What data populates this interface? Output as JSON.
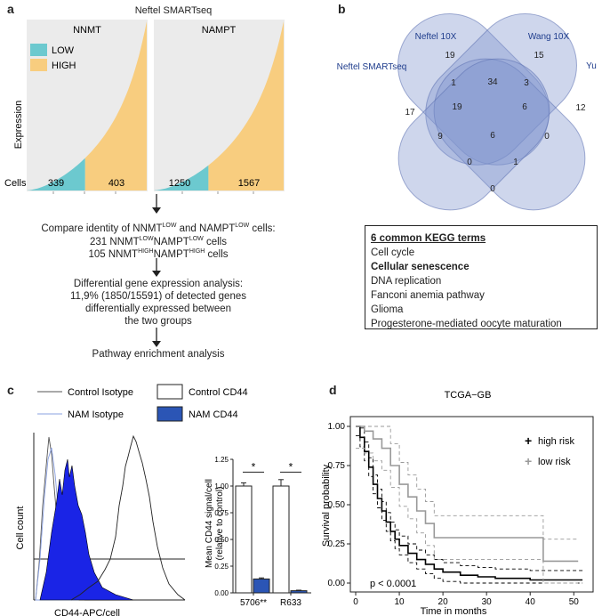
{
  "panel_a": {
    "label": "a",
    "title": "Neftel SMARTseq",
    "left_title": "NNMT",
    "right_title": "NAMPT",
    "legend_low": "LOW",
    "legend_high": "HIGH",
    "ylabel": "Expression",
    "cells_label": "Cells",
    "counts": [
      "339",
      "403",
      "1250",
      "1567"
    ],
    "colors": {
      "low": "#6cc9cf",
      "high": "#f8cd7f",
      "bg": "#ebebeb"
    },
    "flow": {
      "step1_prefix": "Compare identity of  NNMT",
      "step1_sup1": "LOW",
      "step1_mid": " and NAMPT",
      "step1_sup2": "LOW",
      "step1_suffix": " cells:",
      "line2_num": "231 NNMT",
      "line2_sup1": "LOW",
      "line2_mid": "NAMPT",
      "line2_sup2": "LOW",
      "line2_suffix": " cells",
      "line3_num": "105 NNMT",
      "line3_sup1": "HIGH",
      "line3_mid": "NAMPT",
      "line3_sup2": "HIGH",
      "line3_suffix": " cells",
      "step2": [
        "Differential gene expression analysis:",
        "11,9% (1850/15591) of detected genes",
        "differentially expressed between",
        "the two groups"
      ],
      "step3": "Pathway enrichment analysis"
    }
  },
  "panel_b": {
    "label": "b",
    "sets": [
      "Neftel 10X",
      "Wang 10X",
      "Neftel SMARTseq",
      "Yu"
    ],
    "counts": [
      "19",
      "15",
      "17",
      "12",
      "1",
      "34",
      "3",
      "19",
      "6",
      "9",
      "0",
      "6",
      "0",
      "1",
      "0"
    ],
    "set_color": "#1e3c8c",
    "fill_color": "#7e93cc",
    "kegg_title": "6 common KEGG terms",
    "kegg_terms": [
      "Cell cycle",
      "Cellular senescence",
      "DNA replication",
      "Fanconi anemia pathway",
      "Glioma",
      "Progesterone-mediated oocyte maturation"
    ]
  },
  "panel_c": {
    "label": "c",
    "legend": [
      "Control Isotype",
      "Control CD44",
      "NAM Isotype",
      "NAM CD44"
    ],
    "hist_ylabel": "Cell count",
    "hist_xlabel": "CD44-APC/cell",
    "bar_ylabel_1": "Mean CD44 signal/cell",
    "bar_ylabel_2": "(relative to control)",
    "colors": {
      "nam_fill": "#2b55b5",
      "histo_blue": "#1a24e6"
    },
    "chart_data": {
      "type": "bar",
      "categories": [
        "5706**",
        "R633"
      ],
      "series": [
        {
          "name": "Control CD44",
          "values": [
            1.0,
            1.0
          ],
          "errors": [
            0.03,
            0.06
          ]
        },
        {
          "name": "NAM CD44",
          "values": [
            0.13,
            0.02
          ],
          "errors": [
            0.01,
            0.005
          ]
        }
      ],
      "yticks": [
        "0.00",
        "0.25",
        "0.50",
        "0.75",
        "1.00",
        "1.25"
      ],
      "ylim": [
        0,
        1.25
      ],
      "significance": [
        "*",
        "*"
      ]
    }
  },
  "panel_d": {
    "label": "d",
    "title": "TCGA−GB",
    "ylabel": "Survival probability",
    "xlabel": "Time in months",
    "legend_high_symbol": "+",
    "legend_high": "high risk",
    "legend_low_symbol": "+",
    "legend_low": "low risk",
    "pvalue": "p < 0.0001",
    "chart_data": {
      "type": "line",
      "xticks": [
        "0",
        "10",
        "20",
        "30",
        "40",
        "50"
      ],
      "yticks": [
        "0.00",
        "0.25",
        "0.50",
        "0.75",
        "1.00"
      ],
      "xlim": [
        0,
        53
      ],
      "ylim": [
        0,
        1
      ],
      "series": [
        {
          "name": "high risk",
          "color": "#000000",
          "x": [
            0,
            1,
            2,
            3,
            4,
            5,
            6,
            7,
            8,
            9,
            10,
            12,
            14,
            16,
            18,
            20,
            24,
            28,
            32,
            36,
            40,
            52
          ],
          "y": [
            1.0,
            0.93,
            0.84,
            0.74,
            0.63,
            0.54,
            0.46,
            0.39,
            0.33,
            0.28,
            0.24,
            0.19,
            0.15,
            0.12,
            0.09,
            0.07,
            0.05,
            0.04,
            0.03,
            0.03,
            0.02,
            0.02
          ]
        },
        {
          "name": "low risk",
          "color": "#999999",
          "x": [
            0,
            2,
            4,
            6,
            8,
            10,
            12,
            14,
            16,
            18,
            27,
            43,
            51
          ],
          "y": [
            1.0,
            0.97,
            0.92,
            0.86,
            0.75,
            0.63,
            0.55,
            0.46,
            0.38,
            0.29,
            0.29,
            0.14,
            0.14
          ]
        }
      ]
    }
  }
}
